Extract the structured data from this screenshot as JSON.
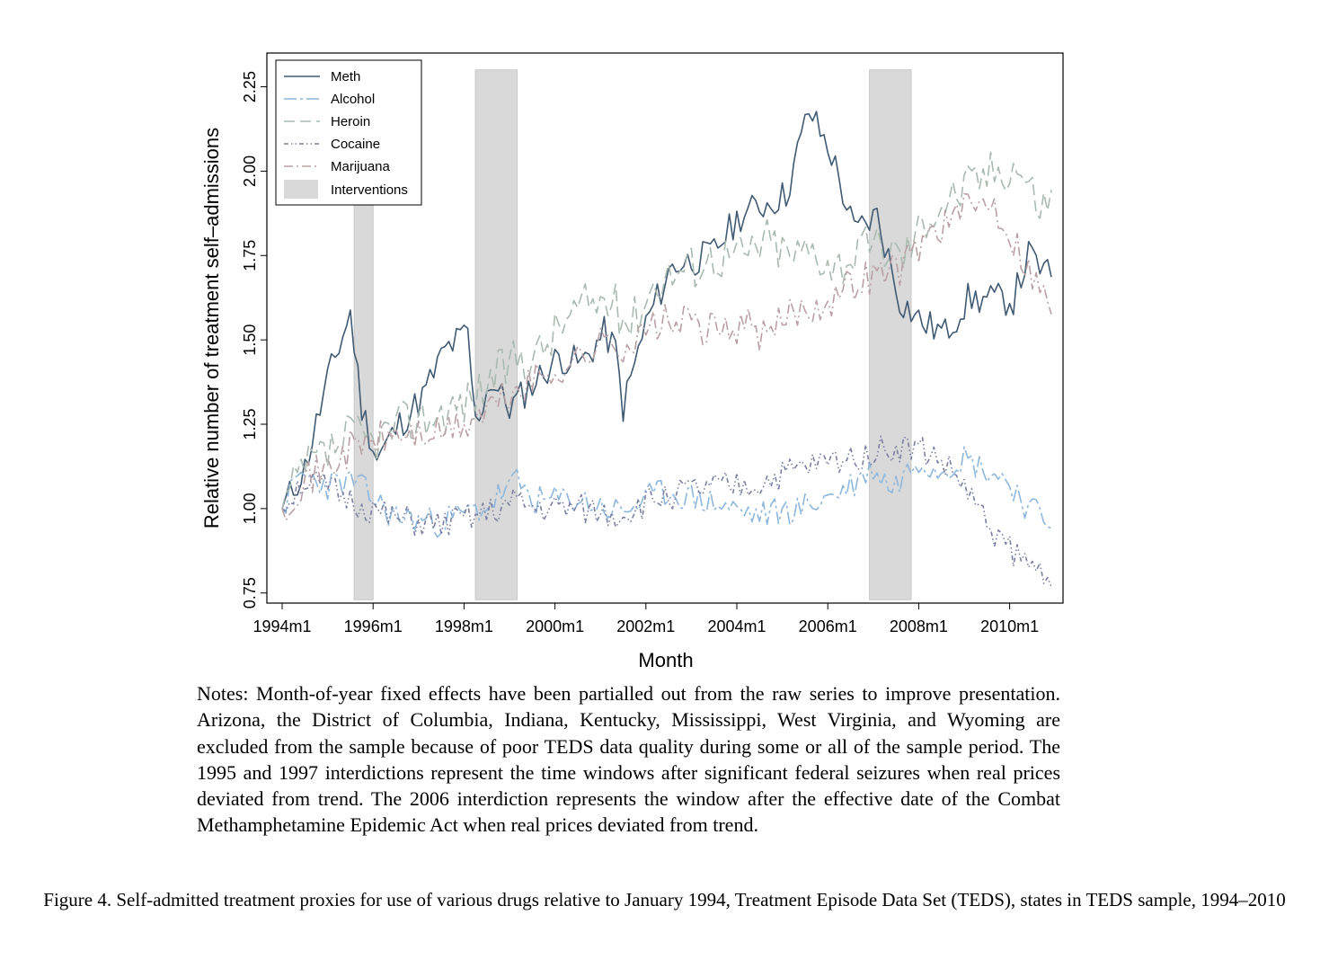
{
  "figure": {
    "notes": "Notes: Month-of-year fixed effects have been partialled out from the raw series to improve presentation. Arizona, the District of Columbia, Indiana, Kentucky, Mississippi, West Virginia, and Wyoming are excluded from the sample because of poor TEDS data quality during some or all of the sample period. The 1995 and 1997 interdictions represent the time windows after significant federal seizures when real prices deviated from trend. The 2006 interdiction represents the window after the effective date of the Combat Methamphetamine Epidemic Act when real prices deviated from trend.",
    "caption": "Figure 4. Self-admitted treatment proxies for use of various drugs relative to January 1994, Treatment Episode Data Set (TEDS), states in TEDS sample, 1994–2010"
  },
  "chart_data": {
    "type": "line",
    "xlabel": "Month",
    "ylabel": "Relative number of treatment self–admissions",
    "x_ticks": [
      "1994m1",
      "1996m1",
      "1998m1",
      "2000m1",
      "2002m1",
      "2004m1",
      "2006m1",
      "2008m1",
      "2010m1"
    ],
    "y_ticks": [
      "0.75",
      "1.00",
      "1.25",
      "1.50",
      "1.75",
      "2.00",
      "2.25"
    ],
    "xlim": [
      "1994m1",
      "2010m12"
    ],
    "ylim": [
      0.72,
      2.35
    ],
    "grid": false,
    "legend_position": "top-left",
    "interventions": [
      {
        "start": "1995m8",
        "end": "1996m1"
      },
      {
        "start": "1998m4",
        "end": "1999m3"
      },
      {
        "start": "2006m12",
        "end": "2007m11"
      }
    ],
    "interventions_label": "Interventions",
    "interventions_color": "#d9d9d9",
    "series": [
      {
        "name": "Meth",
        "color": "#3f5a72",
        "dash": "solid",
        "anchors": [
          [
            "1994m1",
            1.0
          ],
          [
            "1994m7",
            1.12
          ],
          [
            "1995m1",
            1.38
          ],
          [
            "1995m7",
            1.58
          ],
          [
            "1995m10",
            1.3
          ],
          [
            "1996m2",
            1.15
          ],
          [
            "1996m8",
            1.25
          ],
          [
            "1997m2",
            1.33
          ],
          [
            "1997m8",
            1.47
          ],
          [
            "1998m2",
            1.52
          ],
          [
            "1998m4",
            1.25
          ],
          [
            "1998m8",
            1.38
          ],
          [
            "1999m1",
            1.3
          ],
          [
            "1999m3",
            1.32
          ],
          [
            "1999m8",
            1.38
          ],
          [
            "2000m2",
            1.45
          ],
          [
            "2000m8",
            1.43
          ],
          [
            "2001m2",
            1.52
          ],
          [
            "2001m5",
            1.47
          ],
          [
            "2001m7",
            1.3
          ],
          [
            "2002m1",
            1.55
          ],
          [
            "2002m8",
            1.72
          ],
          [
            "2003m6",
            1.75
          ],
          [
            "2004m2",
            1.87
          ],
          [
            "2004m8",
            1.9
          ],
          [
            "2005m2",
            1.93
          ],
          [
            "2005m8",
            2.18
          ],
          [
            "2006m2",
            2.05
          ],
          [
            "2006m8",
            1.82
          ],
          [
            "2007m2",
            1.87
          ],
          [
            "2007m8",
            1.62
          ],
          [
            "2008m2",
            1.55
          ],
          [
            "2008m8",
            1.52
          ],
          [
            "2009m2",
            1.62
          ],
          [
            "2009m8",
            1.62
          ],
          [
            "2010m2",
            1.62
          ],
          [
            "2010m6",
            1.75
          ],
          [
            "2010m12",
            1.68
          ]
        ],
        "amp": 0.05,
        "seed": 11
      },
      {
        "name": "Alcohol",
        "color": "#8db7dc",
        "dash": "long-short",
        "anchors": [
          [
            "1994m1",
            1.0
          ],
          [
            "1994m6",
            1.1
          ],
          [
            "1995m1",
            1.07
          ],
          [
            "1995m8",
            1.08
          ],
          [
            "1996m6",
            0.98
          ],
          [
            "1997m6",
            0.96
          ],
          [
            "1998m6",
            1.0
          ],
          [
            "1999m3",
            1.08
          ],
          [
            "1999m8",
            1.02
          ],
          [
            "2000m6",
            1.03
          ],
          [
            "2001m6",
            0.99
          ],
          [
            "2002m6",
            1.05
          ],
          [
            "2003m6",
            1.02
          ],
          [
            "2004m6",
            0.98
          ],
          [
            "2005m6",
            1.0
          ],
          [
            "2006m6",
            1.06
          ],
          [
            "2007m1",
            1.12
          ],
          [
            "2007m6",
            1.06
          ],
          [
            "2008m1",
            1.15
          ],
          [
            "2008m6",
            1.12
          ],
          [
            "2009m1",
            1.15
          ],
          [
            "2009m6",
            1.12
          ],
          [
            "2010m1",
            1.08
          ],
          [
            "2010m6",
            1.0
          ],
          [
            "2010m12",
            0.96
          ]
        ],
        "amp": 0.045,
        "seed": 23
      },
      {
        "name": "Heroin",
        "color": "#a9bab0",
        "dash": "long",
        "anchors": [
          [
            "1994m1",
            1.0
          ],
          [
            "1994m7",
            1.12
          ],
          [
            "1995m1",
            1.16
          ],
          [
            "1995m7",
            1.22
          ],
          [
            "1996m1",
            1.2
          ],
          [
            "1996m8",
            1.25
          ],
          [
            "1997m6",
            1.28
          ],
          [
            "1998m2",
            1.32
          ],
          [
            "1998m8",
            1.38
          ],
          [
            "1999m3",
            1.45
          ],
          [
            "1999m8",
            1.45
          ],
          [
            "2000m3",
            1.55
          ],
          [
            "2000m8",
            1.6
          ],
          [
            "2001m3",
            1.62
          ],
          [
            "2001m9",
            1.55
          ],
          [
            "2002m4",
            1.68
          ],
          [
            "2003m1",
            1.72
          ],
          [
            "2003m8",
            1.75
          ],
          [
            "2004m3",
            1.75
          ],
          [
            "2004m9",
            1.8
          ],
          [
            "2005m3",
            1.75
          ],
          [
            "2005m9",
            1.77
          ],
          [
            "2006m3",
            1.72
          ],
          [
            "2006m9",
            1.76
          ],
          [
            "2007m3",
            1.78
          ],
          [
            "2007m9",
            1.75
          ],
          [
            "2008m4",
            1.88
          ],
          [
            "2009m1",
            1.95
          ],
          [
            "2009m8",
            2.0
          ],
          [
            "2010m3",
            2.02
          ],
          [
            "2010m9",
            1.9
          ],
          [
            "2010m12",
            1.92
          ]
        ],
        "amp": 0.07,
        "seed": 37
      },
      {
        "name": "Cocaine",
        "color": "#7a7fa0",
        "dash": "dash-dot-dot",
        "anchors": [
          [
            "1994m1",
            1.0
          ],
          [
            "1994m6",
            1.08
          ],
          [
            "1995m1",
            1.06
          ],
          [
            "1995m8",
            1.02
          ],
          [
            "1996m6",
            0.97
          ],
          [
            "1997m6",
            0.95
          ],
          [
            "1998m6",
            0.98
          ],
          [
            "1999m3",
            1.02
          ],
          [
            "1999m8",
            1.0
          ],
          [
            "2000m6",
            1.0
          ],
          [
            "2001m6",
            0.98
          ],
          [
            "2002m6",
            1.04
          ],
          [
            "2003m6",
            1.06
          ],
          [
            "2004m6",
            1.07
          ],
          [
            "2005m6",
            1.12
          ],
          [
            "2006m6",
            1.15
          ],
          [
            "2007m1",
            1.17
          ],
          [
            "2007m6",
            1.18
          ],
          [
            "2008m1",
            1.18
          ],
          [
            "2008m6",
            1.15
          ],
          [
            "2009m1",
            1.07
          ],
          [
            "2009m6",
            0.97
          ],
          [
            "2010m1",
            0.88
          ],
          [
            "2010m6",
            0.83
          ],
          [
            "2010m12",
            0.81
          ]
        ],
        "amp": 0.045,
        "seed": 51
      },
      {
        "name": "Marijuana",
        "color": "#b9a0a4",
        "dash": "long-dot",
        "anchors": [
          [
            "1994m1",
            1.0
          ],
          [
            "1994m6",
            1.08
          ],
          [
            "1995m1",
            1.12
          ],
          [
            "1995m7",
            1.18
          ],
          [
            "1996m1",
            1.2
          ],
          [
            "1996m8",
            1.22
          ],
          [
            "1997m6",
            1.22
          ],
          [
            "1998m2",
            1.25
          ],
          [
            "1998m8",
            1.3
          ],
          [
            "1999m3",
            1.35
          ],
          [
            "1999m8",
            1.38
          ],
          [
            "2000m3",
            1.42
          ],
          [
            "2000m8",
            1.45
          ],
          [
            "2001m3",
            1.5
          ],
          [
            "2001m9",
            1.48
          ],
          [
            "2002m4",
            1.55
          ],
          [
            "2003m1",
            1.55
          ],
          [
            "2003m8",
            1.52
          ],
          [
            "2004m3",
            1.55
          ],
          [
            "2004m9",
            1.5
          ],
          [
            "2005m3",
            1.58
          ],
          [
            "2005m9",
            1.6
          ],
          [
            "2006m3",
            1.63
          ],
          [
            "2006m9",
            1.68
          ],
          [
            "2007m3",
            1.7
          ],
          [
            "2007m9",
            1.72
          ],
          [
            "2008m4",
            1.82
          ],
          [
            "2009m1",
            1.88
          ],
          [
            "2009m8",
            1.92
          ],
          [
            "2010m3",
            1.78
          ],
          [
            "2010m9",
            1.65
          ],
          [
            "2010m12",
            1.6
          ]
        ],
        "amp": 0.055,
        "seed": 71
      }
    ]
  }
}
